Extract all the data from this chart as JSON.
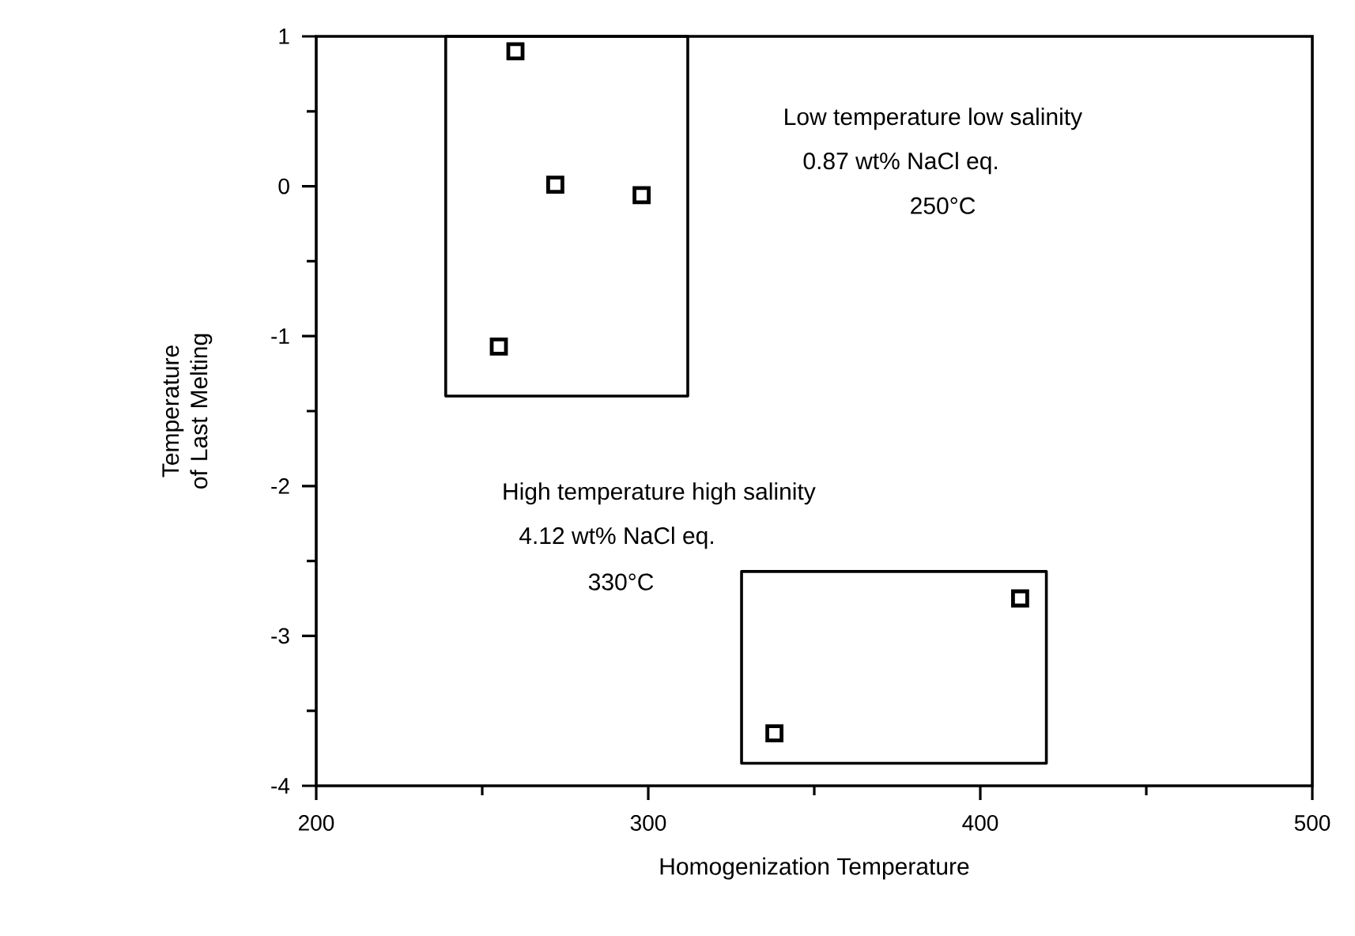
{
  "chart_data": {
    "type": "scatter",
    "xlabel": "Homogenization Temperature",
    "ylabel": "Temperature of Last Melting",
    "xlim": [
      200,
      500
    ],
    "ylim": [
      -4,
      1
    ],
    "xticks": [
      200,
      {
        "value": 250,
        "label": null
      },
      300,
      {
        "value": 350,
        "label": null
      },
      400,
      {
        "value": 450,
        "label": null
      },
      500
    ],
    "yticks": [
      -4,
      {
        "value": -3.5,
        "label": null
      },
      -3,
      {
        "value": -2.5,
        "label": null
      },
      -2,
      {
        "value": -1.5,
        "label": null
      },
      -1,
      {
        "value": -0.5,
        "label": null
      },
      0,
      {
        "value": 0.5,
        "label": null
      },
      1
    ],
    "marker": "square",
    "series": [
      {
        "color": "#000000",
        "x": [
          260,
          272,
          298,
          255,
          338,
          412
        ],
        "values": [
          0.9,
          0.01,
          -0.06,
          -1.07,
          -3.65,
          -2.75
        ]
      }
    ],
    "annotations": [
      "Low temperature low salinity",
      "0.87 wt% NaCl eq.",
      "250°C",
      "High temperature high salinity",
      "4.12 wt% NaCl eq.",
      "330°C"
    ]
  }
}
